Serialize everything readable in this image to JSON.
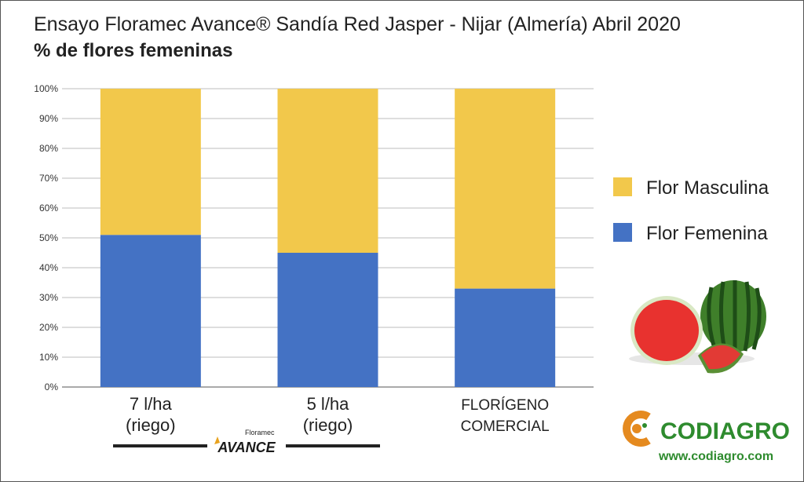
{
  "colors": {
    "masculina": "#F2C84B",
    "femenina": "#4472C4",
    "grid": "#bdbdbd",
    "axis_text": "#333333",
    "codiagro_orange": "#E58A1F",
    "codiagro_green": "#2E8B2E"
  },
  "chart_data": {
    "type": "bar",
    "stacked": true,
    "title": "Ensayo Floramec Avance® Sandía Red Jasper -  Nijar (Almería) Abril 2020",
    "subtitle": "% de flores femeninas",
    "categories": [
      [
        "7   l/ha",
        "(riego)"
      ],
      [
        "5   l/ha",
        "(riego)"
      ],
      [
        "FLORÍGENO",
        "COMERCIAL"
      ]
    ],
    "series": [
      {
        "name": "Flor Femenina",
        "color_key": "femenina",
        "values": [
          51,
          45,
          33
        ]
      },
      {
        "name": "Flor Masculina",
        "color_key": "masculina",
        "values": [
          49,
          55,
          67
        ]
      }
    ],
    "ylim": [
      0,
      100
    ],
    "yticks": [
      "0%",
      "10%",
      "20%",
      "30%",
      "40%",
      "50%",
      "60%",
      "70%",
      "80%",
      "90%",
      "100%"
    ],
    "grid": true,
    "legend": [
      {
        "label": "Flor Masculina",
        "color_key": "masculina"
      },
      {
        "label": "Flor Femenina",
        "color_key": "femenina"
      }
    ],
    "legend_position": "right"
  },
  "brand": {
    "floramec_small": "Floramec",
    "avance": "AVANCE",
    "codiagro_name": "CODIAGRO",
    "codiagro_url": "www.codiagro.com"
  },
  "icons": {
    "watermelon": "watermelon-illustration",
    "codiagro_logo": "codiagro-c-logo"
  }
}
